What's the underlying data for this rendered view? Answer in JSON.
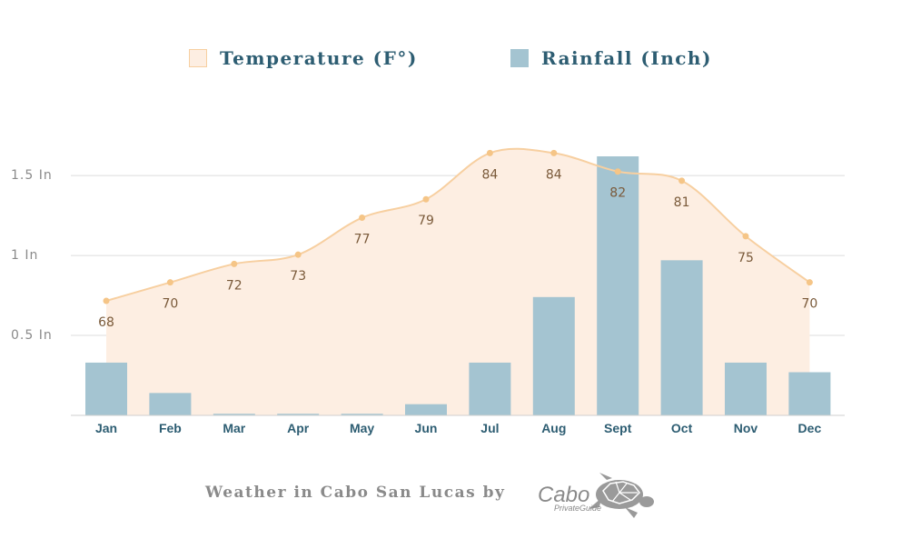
{
  "legend": {
    "temperature_label": "Temperature (F°)",
    "rainfall_label": "Rainfall (Inch)"
  },
  "colors": {
    "temperature_fill": "#fdeee2",
    "temperature_line": "#f7cfa0",
    "temperature_point": "#f5c587",
    "rainfall_bar": "#a4c4d1",
    "grid": "#dcdcdc",
    "axis_label": "#2d5d72",
    "data_label": "#7a5a3a",
    "tick_label": "#8a8a8a"
  },
  "footer": {
    "text": "Weather in Cabo San Lucas by",
    "logo_main": "Cabo",
    "logo_sub": "PrivateGuide"
  },
  "chart_data": {
    "type": "bar",
    "categories": [
      "Jan",
      "Feb",
      "Mar",
      "Apr",
      "May",
      "Jun",
      "Jul",
      "Aug",
      "Sept",
      "Oct",
      "Nov",
      "Dec"
    ],
    "series": [
      {
        "name": "Rainfall (Inch)",
        "type": "bar",
        "values": [
          0.33,
          0.14,
          0.01,
          0.01,
          0.01,
          0.07,
          0.33,
          0.74,
          1.62,
          0.97,
          0.33,
          0.27
        ]
      },
      {
        "name": "Temperature (F°)",
        "type": "area",
        "values": [
          68,
          70,
          72,
          73,
          77,
          79,
          84,
          84,
          82,
          81,
          75,
          70
        ]
      }
    ],
    "y_ticks": [
      {
        "value": 0.5,
        "label": "0.5 In"
      },
      {
        "value": 1,
        "label": "1 In"
      },
      {
        "value": 1.5,
        "label": "1.5 In"
      }
    ],
    "ylim": [
      0,
      1.65
    ],
    "temperature_range": [
      55.6,
      86.5
    ],
    "grid": true,
    "legend_position": "top-center"
  }
}
